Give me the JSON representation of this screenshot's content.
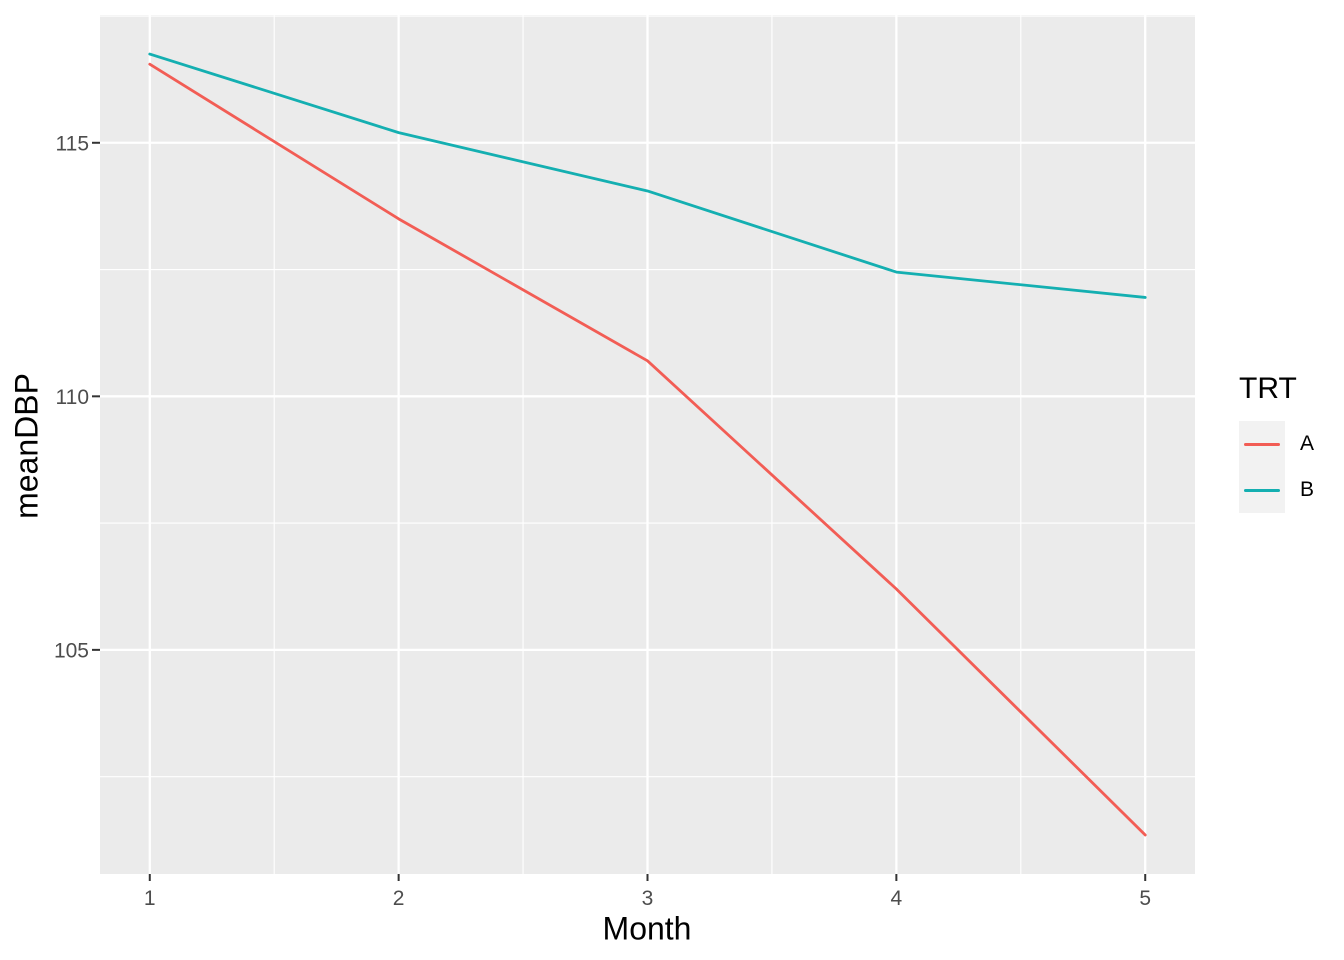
{
  "chart_data": {
    "type": "line",
    "title": "",
    "xlabel": "Month",
    "ylabel": "meanDBP",
    "legend_title": "TRT",
    "legend_position": "right",
    "x": [
      1,
      2,
      3,
      4,
      5
    ],
    "x_ticks": [
      1,
      2,
      3,
      4,
      5
    ],
    "y_ticks": [
      105,
      110,
      115
    ],
    "xlim": [
      0.8,
      5.2
    ],
    "ylim": [
      100.58,
      117.52
    ],
    "grid": {
      "major": true,
      "minor": true
    },
    "series": [
      {
        "name": "A",
        "color": "#F25D55",
        "values": [
          116.55,
          113.5,
          110.7,
          106.2,
          101.35
        ]
      },
      {
        "name": "B",
        "color": "#14AFB1",
        "values": [
          116.75,
          115.2,
          114.05,
          112.45,
          111.95
        ]
      }
    ],
    "colors": {
      "background": "#FFFFFF",
      "panel_bg": "#EBEBEB",
      "grid": "#FFFFFF",
      "tick_mark": "#333333",
      "tick_label": "#4D4D4D",
      "axis_title": "#000000",
      "legend_key_bg": "#F2F2F2"
    }
  }
}
